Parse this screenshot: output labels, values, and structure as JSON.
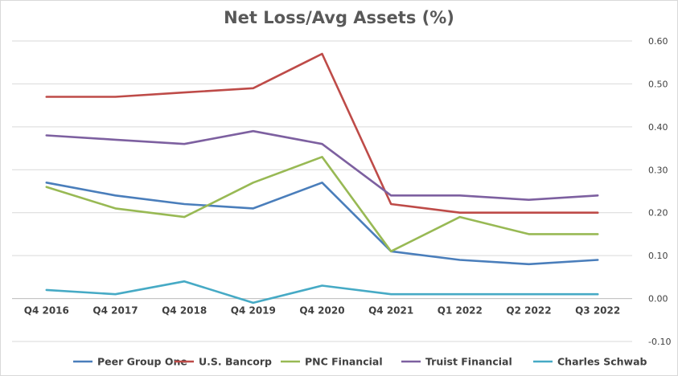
{
  "chart_data": {
    "type": "line",
    "title": "Net Loss/Avg Assets  (%)",
    "xlabel": "",
    "ylabel": "",
    "categories": [
      "Q4 2016",
      "Q4 2017",
      "Q4 2018",
      "Q4 2019",
      "Q4 2020",
      "Q4 2021",
      "Q1 2022",
      "Q2 2022",
      "Q3 2022"
    ],
    "ylim": [
      -0.1,
      0.6
    ],
    "yticks": [
      "-0.10",
      "0.00",
      "0.10",
      "0.20",
      "0.30",
      "0.40",
      "0.50",
      "0.60"
    ],
    "y_axis_side": "right",
    "grid": true,
    "legend_position": "bottom",
    "series": [
      {
        "name": "Peer Group One",
        "color": "#4a7ebb",
        "values": [
          0.27,
          0.24,
          0.22,
          0.21,
          0.27,
          0.11,
          0.09,
          0.08,
          0.09
        ]
      },
      {
        "name": "U.S. Bancorp",
        "color": "#be4b48",
        "values": [
          0.47,
          0.47,
          0.48,
          0.49,
          0.57,
          0.22,
          0.2,
          0.2,
          0.2
        ]
      },
      {
        "name": "PNC Financial",
        "color": "#98b954",
        "values": [
          0.26,
          0.21,
          0.19,
          0.27,
          0.33,
          0.11,
          0.19,
          0.15,
          0.15
        ]
      },
      {
        "name": "Truist Financial",
        "color": "#7d60a0",
        "values": [
          0.38,
          0.37,
          0.36,
          0.39,
          0.36,
          0.24,
          0.24,
          0.23,
          0.24
        ]
      },
      {
        "name": "Charles Schwab",
        "color": "#46aac5",
        "values": [
          0.02,
          0.01,
          0.04,
          -0.01,
          0.03,
          0.01,
          0.01,
          0.01,
          0.01
        ]
      }
    ]
  }
}
